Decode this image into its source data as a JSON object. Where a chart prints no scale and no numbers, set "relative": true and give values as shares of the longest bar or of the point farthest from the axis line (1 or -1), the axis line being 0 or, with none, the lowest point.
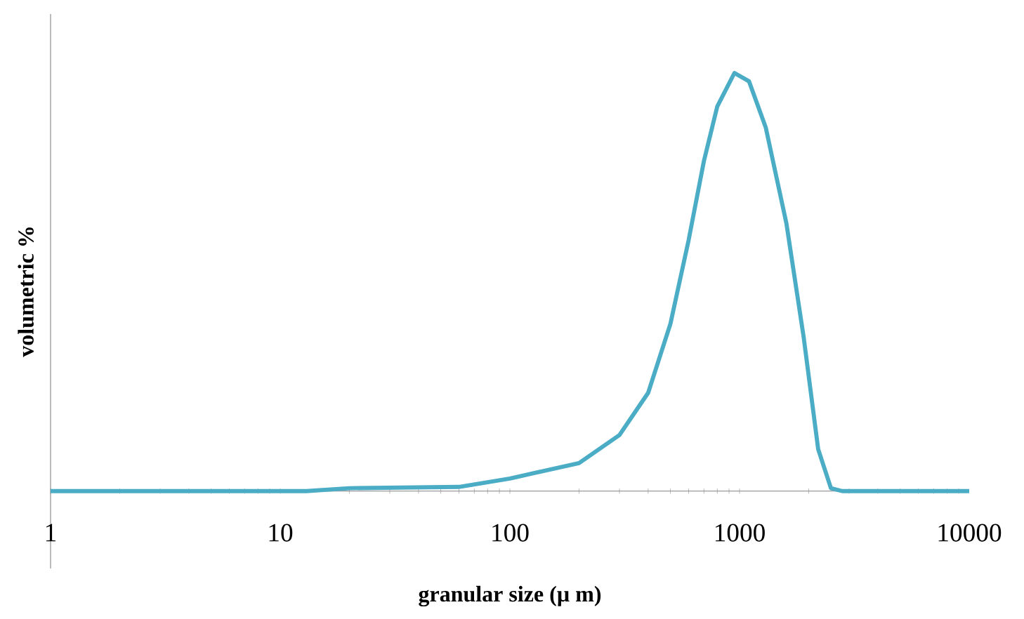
{
  "chart_data": {
    "type": "line",
    "relative": true,
    "log": "x",
    "xlabel": "granular size (µ m)",
    "ylabel": "volumetric %",
    "xlim": [
      1,
      10000
    ],
    "xticks": [
      1,
      10,
      100,
      1000,
      10000
    ],
    "series": [
      {
        "color": "#4bacc6",
        "x": [
          1,
          13,
          20,
          60,
          100,
          200,
          300,
          400,
          500,
          600,
          700,
          800,
          950,
          1100,
          1300,
          1600,
          1900,
          2200,
          2500,
          2800,
          3000,
          10000
        ],
        "values": [
          0,
          0,
          0.007,
          0.01,
          0.03,
          0.067,
          0.134,
          0.235,
          0.4,
          0.6,
          0.79,
          0.92,
          1,
          0.98,
          0.87,
          0.64,
          0.37,
          0.1,
          0.007,
          0,
          0,
          0
        ]
      }
    ]
  }
}
